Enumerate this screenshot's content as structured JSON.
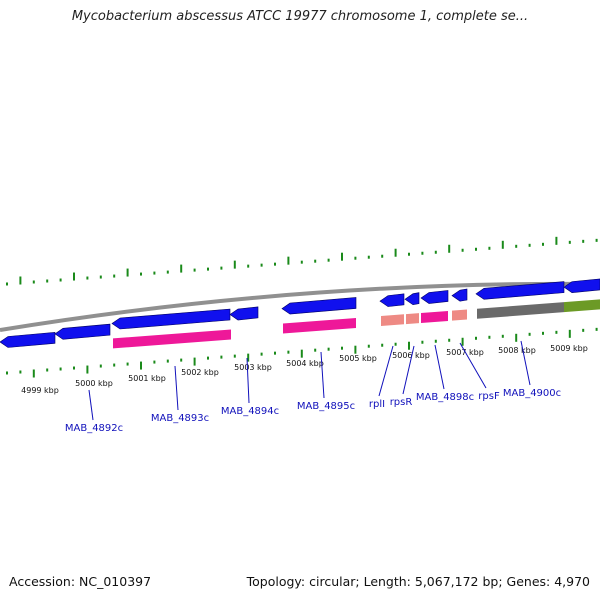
{
  "title": "Mycobacterium abscessus ATCC 19977 chromosome 1, complete se...",
  "footer": {
    "accession": "Accession: NC_010397",
    "stats": "Topology: circular; Length: 5,067,172 bp; Genes: 4,970"
  },
  "colors": {
    "cds": "#1010ee",
    "gene_pink": "#ee1899",
    "gene_salmon": "#ee8a84",
    "gene_gray": "#6a6a6a",
    "gene_green": "#6c9a26",
    "backbone": "#909090",
    "tick": "#1a8a1a",
    "label": "#1111bb"
  },
  "ticks": [
    {
      "label": "4999 kbp"
    },
    {
      "label": "5000 kbp"
    },
    {
      "label": "5001 kbp"
    },
    {
      "label": "5002 kbp"
    },
    {
      "label": "5003 kbp"
    },
    {
      "label": "5004 kbp"
    },
    {
      "label": "5005 kbp"
    },
    {
      "label": "5006 kbp"
    },
    {
      "label": "5007 kbp"
    },
    {
      "label": "5008 kbp"
    },
    {
      "label": "5009 kbp"
    }
  ],
  "gene_labels": [
    {
      "name": "MAB_4892c"
    },
    {
      "name": "MAB_4893c"
    },
    {
      "name": "MAB_4894c"
    },
    {
      "name": "MAB_4895c"
    },
    {
      "name": "rplI"
    },
    {
      "name": "rpsR"
    },
    {
      "name": "MAB_4898c"
    },
    {
      "name": "rpsF"
    },
    {
      "name": "MAB_4900c"
    }
  ]
}
